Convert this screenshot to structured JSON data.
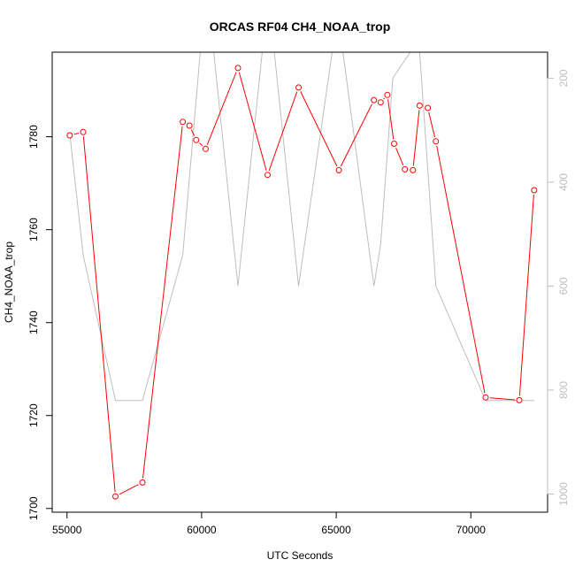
{
  "chart_data": {
    "type": "line",
    "title": "ORCAS RF04 CH4_NOAA_trop",
    "xlabel": "UTC Seconds",
    "ylabel": "CH4_NOAA_trop",
    "xlim": [
      54450,
      72850
    ],
    "ylim": [
      1699.2,
      1798.2
    ],
    "x_ticks": [
      55000,
      60000,
      65000,
      70000
    ],
    "y_ticks": [
      1700,
      1720,
      1740,
      1760,
      1780
    ],
    "y2_ticks": [
      200,
      400,
      600,
      800,
      1000
    ],
    "y2lim": [
      1035,
      150
    ],
    "colors": {
      "primary": "#ff0000",
      "secondary": "#bebebe"
    },
    "series": [
      {
        "values_x": [
          55100,
          55600,
          56800,
          57800,
          59300,
          59550,
          59800,
          60150,
          61350,
          62450,
          63600,
          65100,
          66400,
          66650,
          66900,
          67150,
          67550,
          67850,
          68100,
          68400,
          68700,
          70550,
          71800,
          72350
        ],
        "values_y": [
          1780.3,
          1781.0,
          1702.6,
          1705.6,
          1783.2,
          1782.4,
          1779.3,
          1777.4,
          1794.8,
          1771.8,
          1790.6,
          1772.8,
          1787.9,
          1787.4,
          1789.0,
          1778.5,
          1773.0,
          1772.8,
          1786.7,
          1786.2,
          1779.0,
          1723.9,
          1723.3,
          1768.5
        ]
      },
      {
        "values_x": [
          55100,
          55600,
          56800,
          57800,
          59300,
          59950,
          60450,
          61350,
          62250,
          62700,
          63600,
          64850,
          65250,
          66400,
          66650,
          67100,
          67750,
          68100,
          68700,
          70550,
          71800,
          72350
        ],
        "values_y": [
          305,
          540,
          820,
          820,
          540,
          150,
          150,
          600,
          150,
          150,
          600,
          150,
          150,
          600,
          520,
          200,
          150,
          150,
          600,
          820,
          820,
          820
        ]
      }
    ]
  }
}
